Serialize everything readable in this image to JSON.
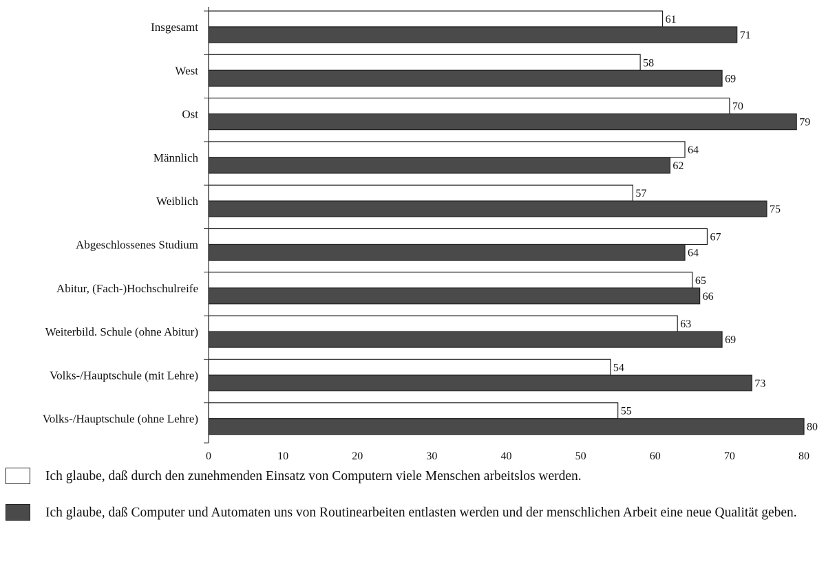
{
  "chart_data": {
    "type": "bar",
    "orientation": "horizontal",
    "categories": [
      "Insgesamt",
      "West",
      "Ost",
      "Männlich",
      "Weiblich",
      "Abgeschlossenes Studium",
      "Abitur, (Fach-)Hochschulreife",
      "Weiterbild. Schule (ohne Abitur)",
      "Volks-/Hauptschule (mit Lehre)",
      "Volks-/Hauptschule (ohne Lehre)"
    ],
    "series": [
      {
        "name": "Ich glaube, daß durch den zunehmenden Einsatz von Computern viele Menschen arbeitslos werden.",
        "color": "#ffffff",
        "values": [
          61,
          58,
          70,
          64,
          57,
          67,
          65,
          63,
          54,
          55
        ]
      },
      {
        "name": "Ich glaube, daß Computer und Automaten uns von Routinearbeiten entlasten werden und der menschlichen Arbeit eine neue Qualität geben.",
        "color": "#4a4a4a",
        "values": [
          71,
          69,
          79,
          62,
          75,
          64,
          66,
          69,
          73,
          80
        ]
      }
    ],
    "xlim": [
      0,
      80
    ],
    "xticks": [
      "0",
      "10",
      "20",
      "30",
      "40",
      "50",
      "60",
      "70",
      "80"
    ],
    "title": "",
    "xlabel": "",
    "ylabel": "",
    "grid": false,
    "legend_position": "bottom"
  },
  "legend": {
    "items": [
      "Ich glaube, daß durch den zunehmenden Einsatz von Computern viele Menschen arbeitslos werden.",
      "Ich glaube, daß Computer und Automaten uns von Routinearbeiten entlasten werden und der menschlichen Arbeit eine neue Qualität geben."
    ]
  }
}
